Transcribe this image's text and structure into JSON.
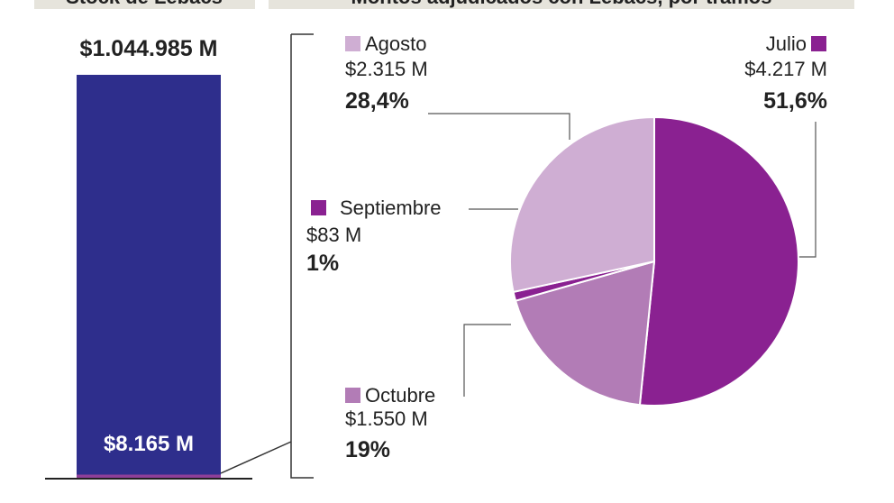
{
  "chart_data": [
    {
      "type": "bar",
      "title": "Stock de Lebacs",
      "values": [
        1044985,
        8165
      ],
      "value_labels": [
        "$1.044.985 M",
        "$8.165 M"
      ],
      "colors": [
        "#2e2e8c",
        "#8e3f99"
      ],
      "ylim": [
        0,
        1044985
      ]
    },
    {
      "type": "pie",
      "title": "Montos adjudicados con Lebacs, por tramos",
      "categories": [
        "Julio",
        "Octubre",
        "Septiembre",
        "Agosto"
      ],
      "values": [
        51.6,
        19,
        1,
        28.4
      ],
      "value_labels": [
        "51,6%",
        "19%",
        "1%",
        "28,4%"
      ],
      "amounts": [
        4217,
        1550,
        83,
        2315
      ],
      "amount_labels": [
        "$4.217 M",
        "$1.550 M",
        "$83 M",
        "$2.315 M"
      ],
      "colors": [
        "#8a2191",
        "#b27cb6",
        "#8a2191",
        "#cfaed3"
      ]
    }
  ]
}
